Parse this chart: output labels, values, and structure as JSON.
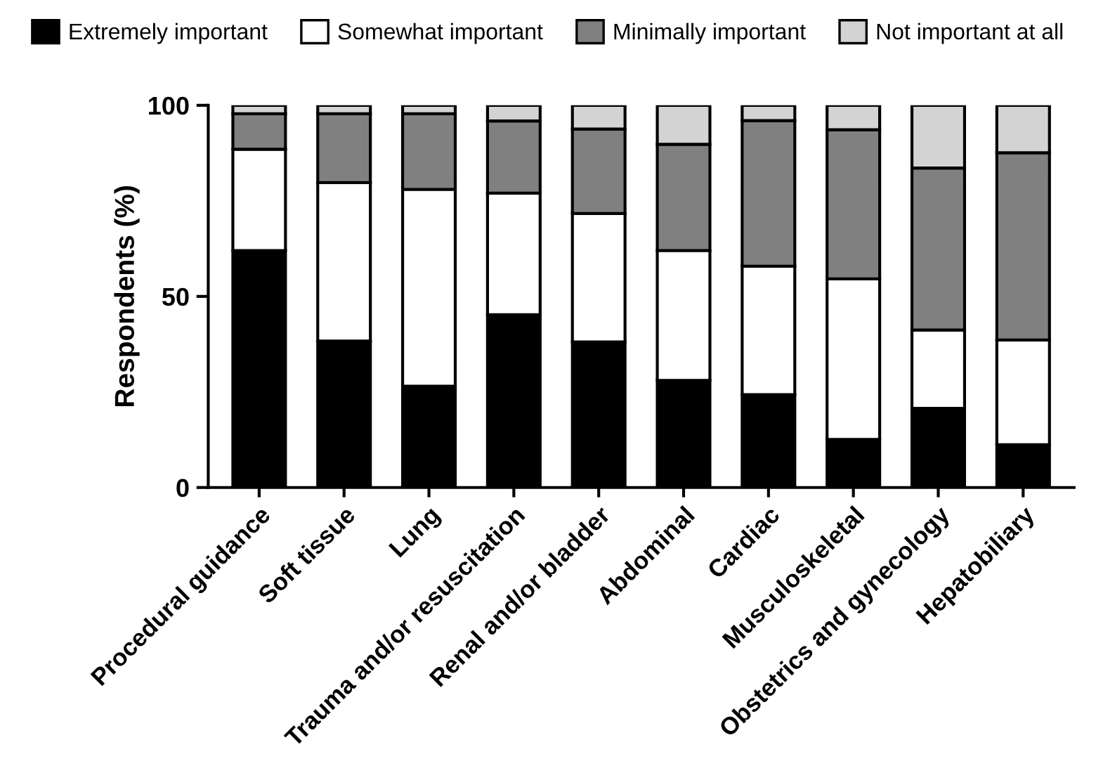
{
  "chart_data": {
    "type": "bar",
    "stacked": true,
    "ylabel": "Respondents (%)",
    "categories": [
      "Procedural guidance",
      "Soft tissue",
      "Lung",
      "Trauma and/or resuscitation",
      "Renal and/or bladder",
      "Abdominal",
      "Cardiac",
      "Musculoskeletal",
      "Obstetrics and gynecology",
      "Hepatobiliary"
    ],
    "series": [
      {
        "name": "Extremely important",
        "color": "#000000",
        "values": [
          62,
          38.3,
          26.5,
          45.2,
          38.1,
          28,
          24.3,
          12.6,
          20.7,
          11.2
        ]
      },
      {
        "name": "Somewhat important",
        "color": "#ffffff",
        "values": [
          26.5,
          41.5,
          51.5,
          31.8,
          33.6,
          34,
          33.6,
          42,
          20.5,
          27.4
        ]
      },
      {
        "name": "Minimally important",
        "color": "#808080",
        "values": [
          9.3,
          18,
          19.8,
          18.9,
          22.1,
          27.8,
          38.1,
          39,
          42.4,
          49
        ]
      },
      {
        "name": "Not important at all",
        "color": "#d3d3d3",
        "values": [
          2.2,
          2.2,
          2.2,
          4.1,
          6.2,
          10.2,
          4,
          6.4,
          16.4,
          12.4
        ]
      }
    ],
    "ylim": [
      0,
      100
    ],
    "yticks": [
      0,
      50,
      100
    ],
    "grid": false,
    "legend": "top"
  }
}
